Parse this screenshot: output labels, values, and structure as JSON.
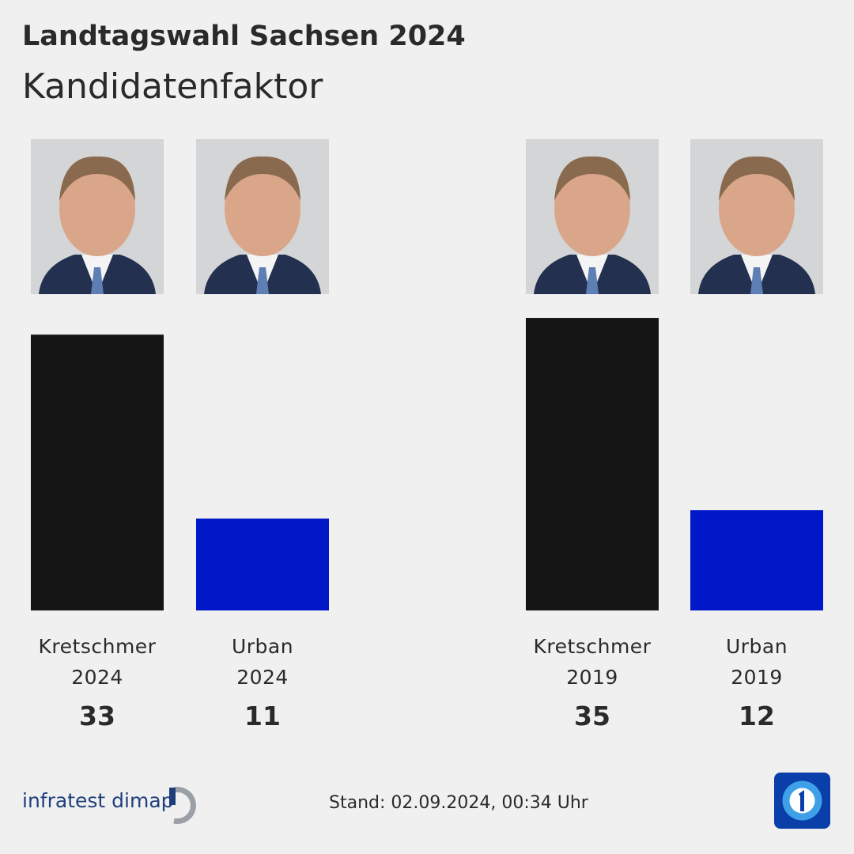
{
  "chart_data": {
    "type": "bar",
    "title": "Landtagswahl Sachsen 2024",
    "subtitle": "Kandidatenfaktor",
    "categories": [
      "Kretschmer\n2024",
      "Urban\n2024",
      "Kretschmer\n2019",
      "Urban\n2019"
    ],
    "values": [
      33,
      11,
      35,
      12
    ],
    "colors": [
      "#141414",
      "#0018c8",
      "#141414",
      "#0018c8"
    ],
    "source": "infratest dimap",
    "timestamp": "Stand:  02.09.2024, 00:34 Uhr"
  }
}
